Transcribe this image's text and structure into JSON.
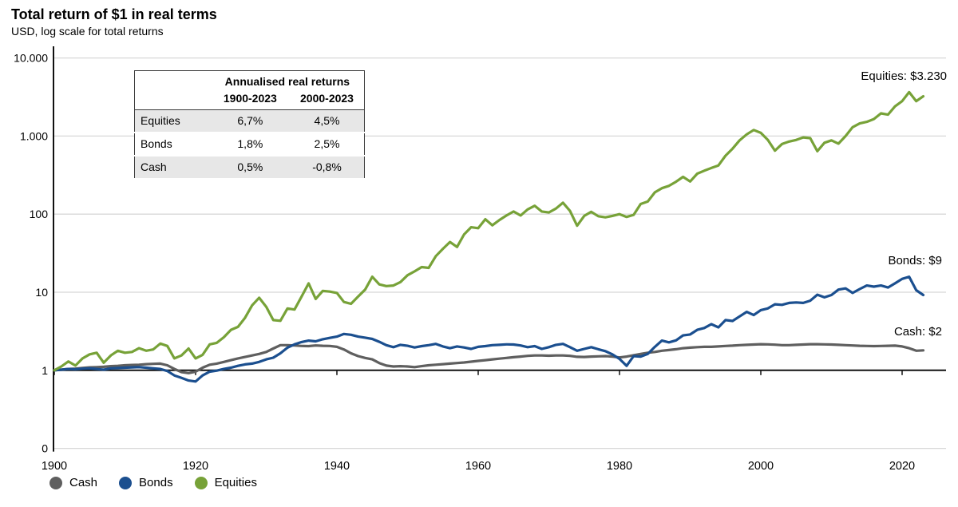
{
  "title": "Total return of $1 in real terms",
  "subtitle": "USD, log scale for total returns",
  "end_labels": {
    "equities": "Equities: $3.230",
    "bonds": "Bonds: $9",
    "cash": "Cash: $2"
  },
  "table": {
    "header_title": "Annualised real returns",
    "col_headers": [
      "1900-2023",
      "2000-2023"
    ],
    "rows": [
      {
        "label": "Equities",
        "values": [
          "6,7%",
          "4,5%"
        ]
      },
      {
        "label": "Bonds",
        "values": [
          "1,8%",
          "2,5%"
        ]
      },
      {
        "label": "Cash",
        "values": [
          "0,5%",
          "-0,8%"
        ]
      }
    ]
  },
  "legend": [
    {
      "id": "cash",
      "label": "Cash",
      "color": "#5f5f5f"
    },
    {
      "id": "bonds",
      "label": "Bonds",
      "color": "#1b4f8f"
    },
    {
      "id": "equities",
      "label": "Equities",
      "color": "#77a238"
    }
  ],
  "colors": {
    "cash": "#5f5f5f",
    "bonds": "#1b4f8f",
    "equities": "#77a238",
    "gridline": "#d8d8d8",
    "baseline": "#111111",
    "axis": "#111111"
  },
  "chart_data": {
    "type": "line",
    "title": "Total return of $1 in real terms",
    "subtitle": "USD, log scale for total returns",
    "y_scale": "log10",
    "x_start_year": 1900,
    "x_end_year": 2023,
    "x_ticks": [
      1900,
      1920,
      1940,
      1960,
      1980,
      2000,
      2020
    ],
    "y_ticks": [
      {
        "label": "10.000",
        "value": 10000
      },
      {
        "label": "1.000",
        "value": 1000
      },
      {
        "label": "100",
        "value": 100
      },
      {
        "label": "10",
        "value": 10
      },
      {
        "label": "1",
        "value": 1
      },
      {
        "label": "0",
        "value": 0
      }
    ],
    "legend_position": "bottom-left",
    "grid": "horizontal-only",
    "series": [
      {
        "name": "Cash",
        "color": "#5f5f5f",
        "end_value_label": "Cash: $2",
        "values": [
          1.0,
          1.02,
          1.04,
          1.05,
          1.07,
          1.09,
          1.1,
          1.11,
          1.13,
          1.14,
          1.16,
          1.17,
          1.18,
          1.2,
          1.21,
          1.22,
          1.16,
          1.04,
          0.95,
          0.92,
          0.96,
          1.08,
          1.18,
          1.22,
          1.28,
          1.35,
          1.42,
          1.48,
          1.55,
          1.62,
          1.72,
          1.9,
          2.1,
          2.1,
          2.08,
          2.05,
          2.04,
          2.08,
          2.06,
          2.05,
          2.0,
          1.85,
          1.65,
          1.52,
          1.44,
          1.38,
          1.24,
          1.15,
          1.12,
          1.13,
          1.12,
          1.1,
          1.13,
          1.16,
          1.18,
          1.2,
          1.22,
          1.24,
          1.26,
          1.29,
          1.32,
          1.35,
          1.38,
          1.41,
          1.44,
          1.47,
          1.5,
          1.53,
          1.55,
          1.55,
          1.54,
          1.55,
          1.55,
          1.53,
          1.49,
          1.48,
          1.5,
          1.51,
          1.52,
          1.5,
          1.46,
          1.5,
          1.56,
          1.62,
          1.68,
          1.72,
          1.78,
          1.82,
          1.86,
          1.92,
          1.95,
          1.98,
          2.0,
          2.0,
          2.02,
          2.05,
          2.07,
          2.1,
          2.12,
          2.14,
          2.16,
          2.15,
          2.13,
          2.1,
          2.1,
          2.12,
          2.14,
          2.16,
          2.16,
          2.15,
          2.14,
          2.12,
          2.1,
          2.08,
          2.06,
          2.05,
          2.04,
          2.05,
          2.06,
          2.07,
          2.02,
          1.92,
          1.78,
          1.8
        ]
      },
      {
        "name": "Bonds",
        "color": "#1b4f8f",
        "end_value_label": "Bonds: $9",
        "values": [
          1.0,
          1.02,
          1.04,
          1.03,
          1.05,
          1.06,
          1.04,
          1.02,
          1.06,
          1.07,
          1.08,
          1.09,
          1.1,
          1.08,
          1.06,
          1.04,
          0.98,
          0.86,
          0.8,
          0.74,
          0.72,
          0.86,
          0.96,
          0.99,
          1.04,
          1.08,
          1.14,
          1.19,
          1.22,
          1.28,
          1.38,
          1.45,
          1.65,
          1.95,
          2.15,
          2.3,
          2.4,
          2.35,
          2.5,
          2.6,
          2.7,
          2.92,
          2.85,
          2.7,
          2.62,
          2.52,
          2.32,
          2.1,
          1.98,
          2.12,
          2.06,
          1.96,
          2.04,
          2.1,
          2.18,
          2.02,
          1.92,
          2.02,
          1.96,
          1.88,
          2.0,
          2.04,
          2.1,
          2.12,
          2.15,
          2.14,
          2.08,
          1.98,
          2.04,
          1.88,
          1.98,
          2.12,
          2.18,
          1.98,
          1.78,
          1.88,
          1.98,
          1.86,
          1.76,
          1.6,
          1.4,
          1.14,
          1.52,
          1.5,
          1.62,
          2.0,
          2.4,
          2.28,
          2.42,
          2.8,
          2.88,
          3.3,
          3.48,
          3.9,
          3.55,
          4.4,
          4.28,
          4.9,
          5.6,
          5.1,
          5.9,
          6.2,
          7.0,
          6.9,
          7.3,
          7.4,
          7.3,
          7.8,
          9.3,
          8.6,
          9.2,
          10.8,
          11.2,
          9.8,
          11.0,
          12.2,
          11.8,
          12.2,
          11.5,
          13.0,
          14.8,
          15.8,
          10.6,
          9.2
        ]
      },
      {
        "name": "Equities",
        "color": "#77a238",
        "end_value_label": "Equities: $3.230",
        "values": [
          1.0,
          1.12,
          1.3,
          1.15,
          1.42,
          1.6,
          1.68,
          1.25,
          1.55,
          1.78,
          1.68,
          1.72,
          1.92,
          1.78,
          1.85,
          2.2,
          2.05,
          1.42,
          1.55,
          1.9,
          1.42,
          1.58,
          2.15,
          2.25,
          2.65,
          3.3,
          3.6,
          4.7,
          6.8,
          8.5,
          6.5,
          4.4,
          4.3,
          6.2,
          6.0,
          8.8,
          13.0,
          8.2,
          10.4,
          10.2,
          9.8,
          7.5,
          7.1,
          8.8,
          10.8,
          15.8,
          12.6,
          12.0,
          12.2,
          13.5,
          16.5,
          18.5,
          21.0,
          20.5,
          29.0,
          36.0,
          44.0,
          38.0,
          55.0,
          68.0,
          66.0,
          86.0,
          72.0,
          84.0,
          96.0,
          108,
          96.0,
          115,
          128,
          108,
          105,
          118,
          140,
          110,
          71.0,
          95.0,
          107,
          94.0,
          91.0,
          95.0,
          100,
          92.0,
          98.0,
          135,
          145,
          190,
          215,
          230,
          260,
          300,
          262,
          330,
          360,
          390,
          420,
          560,
          690,
          880,
          1050,
          1195,
          1100,
          890,
          650,
          790,
          850,
          890,
          960,
          940,
          640,
          820,
          880,
          800,
          1000,
          1300,
          1450,
          1520,
          1650,
          1950,
          1880,
          2400,
          2800,
          3650,
          2800,
          3230
        ]
      }
    ]
  }
}
